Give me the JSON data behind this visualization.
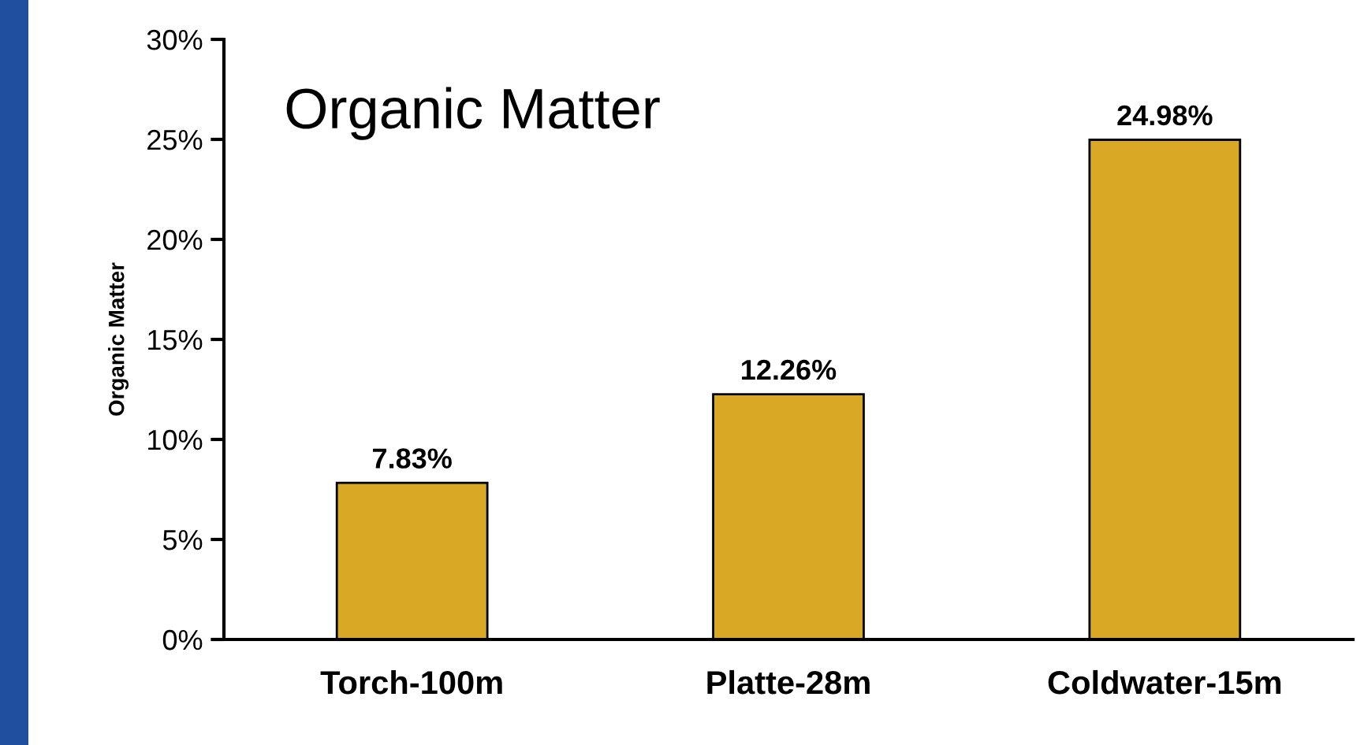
{
  "chart_data": {
    "type": "bar",
    "title": "Organic Matter",
    "ylabel": "Organic Matter",
    "categories": [
      "Torch-100m",
      "Platte-28m",
      "Coldwater-15m"
    ],
    "values": [
      7.83,
      12.26,
      24.98
    ],
    "value_labels": [
      "7.83%",
      "12.26%",
      "24.98%"
    ],
    "color": "#d9a824",
    "ylim": [
      0,
      30
    ],
    "yticks": [
      {
        "value": 0,
        "label": "0%"
      },
      {
        "value": 5,
        "label": "5%"
      },
      {
        "value": 10,
        "label": "10%"
      },
      {
        "value": 15,
        "label": "15%"
      },
      {
        "value": 20,
        "label": "20%"
      },
      {
        "value": 25,
        "label": "25%"
      },
      {
        "value": 30,
        "label": "30%"
      }
    ],
    "grid": false,
    "legend": false
  }
}
